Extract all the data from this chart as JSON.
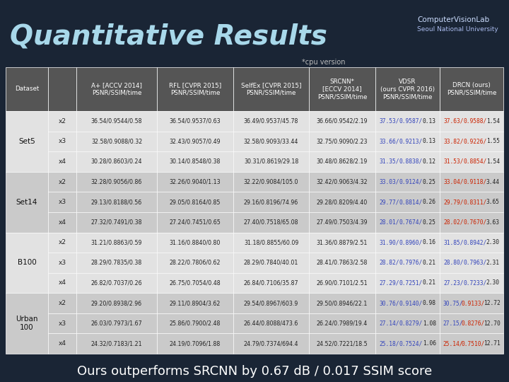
{
  "title": "Quantitative Results",
  "subtitle": "*cpu version",
  "footer": "Ours outperforms SRCNN by 0.67 dB / 0.017 SSIM score",
  "bg_color": "#1a2535",
  "row_colors": [
    "#e2e2e2",
    "#cacaca",
    "#e2e2e2",
    "#cacaca"
  ],
  "header_color": "#555555",
  "vdsr_psnr_color": "#3344bb",
  "vdsr_ssim_color": "#3344bb",
  "vdsr_time_color": "#222222",
  "rows": [
    {
      "dataset": "Set5",
      "scales": [
        "x2",
        "x3",
        "x4"
      ],
      "aplus": [
        "36.54/0.9544/0.58",
        "32.58/0.9088/0.32",
        "30.28/0.8603/0.24"
      ],
      "rfl": [
        "36.54/0.9537/0.63",
        "32.43/0.9057/0.49",
        "30.14/0.8548/0.38"
      ],
      "selfex": [
        "36.49/0.9537/45.78",
        "32.58/0.9093/33.44",
        "30.31/0.8619/29.18"
      ],
      "srcnn": [
        "36.66/0.9542/2.19",
        "32.75/0.9090/2.23",
        "30.48/0.8628/2.19"
      ],
      "vdsr": [
        "37.53/0.9587/0.13",
        "33.66/0.9213/0.13",
        "31.35/0.8838/0.12"
      ],
      "drcn": [
        "37.63/0.9588/1.54",
        "33.82/0.9226/1.55",
        "31.53/0.8854/1.54"
      ],
      "drcn_pc": [
        "#cc2200",
        "#cc2200",
        "#cc2200"
      ],
      "drcn_sc": [
        "#cc2200",
        "#cc2200",
        "#cc2200"
      ]
    },
    {
      "dataset": "Set14",
      "scales": [
        "x2",
        "x3",
        "x4"
      ],
      "aplus": [
        "32.28/0.9056/0.86",
        "29.13/0.8188/0.56",
        "27.32/0.7491/0.38"
      ],
      "rfl": [
        "32.26/0.9040/1.13",
        "29.05/0.8164/0.85",
        "27.24/0.7451/0.65"
      ],
      "selfex": [
        "32.22/0.9084/105.0",
        "29.16/0.8196/74.96",
        "27.40/0.7518/65.08"
      ],
      "srcnn": [
        "32.42/0.9063/4.32",
        "29.28/0.8209/4.40",
        "27.49/0.7503/4.39"
      ],
      "vdsr": [
        "33.03/0.9124/0.25",
        "29.77/0.8814/0.26",
        "28.01/0.7674/0.25"
      ],
      "drcn": [
        "33.04/0.9118/3.44",
        "29.79/0.8311/3.65",
        "28.02/0.7670/3.63"
      ],
      "drcn_pc": [
        "#cc2200",
        "#cc2200",
        "#cc2200"
      ],
      "drcn_sc": [
        "#cc2200",
        "#cc2200",
        "#cc2200"
      ]
    },
    {
      "dataset": "B100",
      "scales": [
        "x2",
        "x3",
        "x4"
      ],
      "aplus": [
        "31.21/0.8863/0.59",
        "28.29/0.7835/0.38",
        "26.82/0.7037/0.26"
      ],
      "rfl": [
        "31.16/0.8840/0.80",
        "28.22/0.7806/0.62",
        "26.75/0.7054/0.48"
      ],
      "selfex": [
        "31.18/0.8855/60.09",
        "28.29/0.7840/40.01",
        "26.84/0.7106/35.87"
      ],
      "srcnn": [
        "31.36/0.8879/2.51",
        "28.41/0.7863/2.58",
        "26.90/0.7101/2.51"
      ],
      "vdsr": [
        "31.90/0.8960/0.16",
        "28.82/0.7976/0.21",
        "27.29/0.7251/0.21"
      ],
      "drcn": [
        "31.85/0.8942/2.30",
        "28.80/0.7963/2.31",
        "27.23/0.7233/2.30"
      ],
      "drcn_pc": [
        "#3344bb",
        "#3344bb",
        "#3344bb"
      ],
      "drcn_sc": [
        "#3344bb",
        "#3344bb",
        "#3344bb"
      ]
    },
    {
      "dataset": "Urban\n100",
      "scales": [
        "x2",
        "x3",
        "x4"
      ],
      "aplus": [
        "29.20/0.8938/2.96",
        "26.03/0.7973/1.67",
        "24.32/0.7183/1.21"
      ],
      "rfl": [
        "29.11/0.8904/3.62",
        "25.86/0.7900/2.48",
        "24.19/0.7096/1.88"
      ],
      "selfex": [
        "29.54/0.8967/603.9",
        "26.44/0.8088/473.6",
        "24.79/0.7374/694.4"
      ],
      "srcnn": [
        "29.50/0.8946/22.1",
        "26.24/0.7989/19.4",
        "24.52/0.7221/18.5"
      ],
      "vdsr": [
        "30.76/0.9140/0.98",
        "27.14/0.8279/1.08",
        "25.18/0.7524/1.06"
      ],
      "drcn": [
        "30.75/0.9133/12.72",
        "27.15/0.8276/12.70",
        "25.14/0.7510/12.71"
      ],
      "drcn_pc": [
        "#3344bb",
        "#3344bb",
        "#cc2200"
      ],
      "drcn_sc": [
        "#cc2200",
        "#cc2200",
        "#cc2200"
      ]
    }
  ]
}
